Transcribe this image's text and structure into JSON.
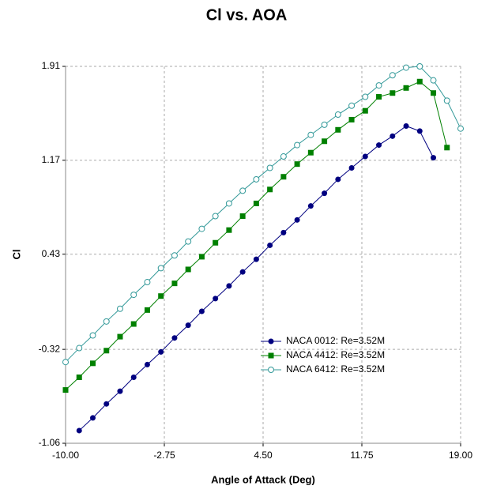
{
  "chart_data": {
    "type": "line",
    "title": "Cl vs. AOA",
    "x_label": "Angle of Attack (Deg)",
    "y_label": "Cl",
    "xlim": [
      -10,
      19
    ],
    "xticks": [
      {
        "value": -10,
        "label": "-10.00"
      },
      -2.75,
      {
        "value": 4.5,
        "label": "4.50"
      },
      11.75,
      {
        "value": 19,
        "label": "19.00"
      }
    ],
    "ylim": [
      -1.06,
      1.91
    ],
    "yticks": [
      -1.06,
      -0.32,
      0.43,
      1.17,
      1.91
    ],
    "grid": true,
    "legend": "lower right",
    "series": [
      {
        "name": "NACA 0012: Re=3.52M",
        "color": "#000080",
        "marker": "circle",
        "x": [
          -9,
          -8,
          -7,
          -6,
          -5,
          -4,
          -3,
          -2,
          -1,
          0,
          1,
          2,
          3,
          4,
          5,
          6,
          7,
          8,
          9,
          10,
          11,
          12,
          13,
          14,
          15,
          16,
          17
        ],
        "values": [
          -0.96,
          -0.86,
          -0.75,
          -0.65,
          -0.54,
          -0.44,
          -0.34,
          -0.23,
          -0.13,
          -0.02,
          0.08,
          0.18,
          0.29,
          0.39,
          0.5,
          0.6,
          0.7,
          0.81,
          0.91,
          1.02,
          1.11,
          1.2,
          1.29,
          1.36,
          1.44,
          1.4,
          1.19
        ]
      },
      {
        "name": "NACA 4412: Re=3.52M",
        "color": "#008000",
        "marker": "square",
        "x": [
          -10,
          -9,
          -8,
          -7,
          -6,
          -5,
          -4,
          -3,
          -2,
          -1,
          0,
          1,
          2,
          3,
          4,
          5,
          6,
          7,
          8,
          9,
          10,
          11,
          12,
          13,
          14,
          15,
          16,
          17,
          18
        ],
        "values": [
          -0.64,
          -0.54,
          -0.43,
          -0.33,
          -0.22,
          -0.12,
          -0.01,
          0.1,
          0.2,
          0.31,
          0.41,
          0.52,
          0.62,
          0.73,
          0.83,
          0.94,
          1.04,
          1.14,
          1.23,
          1.32,
          1.41,
          1.49,
          1.56,
          1.67,
          1.7,
          1.74,
          1.79,
          1.7,
          1.27
        ]
      },
      {
        "name": "NACA 6412: Re=3.52M",
        "color": "#339999",
        "marker": "open-circle",
        "x": [
          -10,
          -9,
          -8,
          -7,
          -6,
          -5,
          -4,
          -3,
          -2,
          -1,
          0,
          1,
          2,
          3,
          4,
          5,
          6,
          7,
          8,
          9,
          10,
          11,
          12,
          13,
          14,
          15,
          16,
          17,
          18,
          19
        ],
        "values": [
          -0.42,
          -0.31,
          -0.21,
          -0.1,
          0.0,
          0.11,
          0.21,
          0.32,
          0.42,
          0.53,
          0.63,
          0.73,
          0.83,
          0.93,
          1.02,
          1.11,
          1.2,
          1.29,
          1.37,
          1.45,
          1.53,
          1.6,
          1.67,
          1.76,
          1.84,
          1.9,
          1.91,
          1.8,
          1.64,
          1.42
        ]
      }
    ]
  }
}
